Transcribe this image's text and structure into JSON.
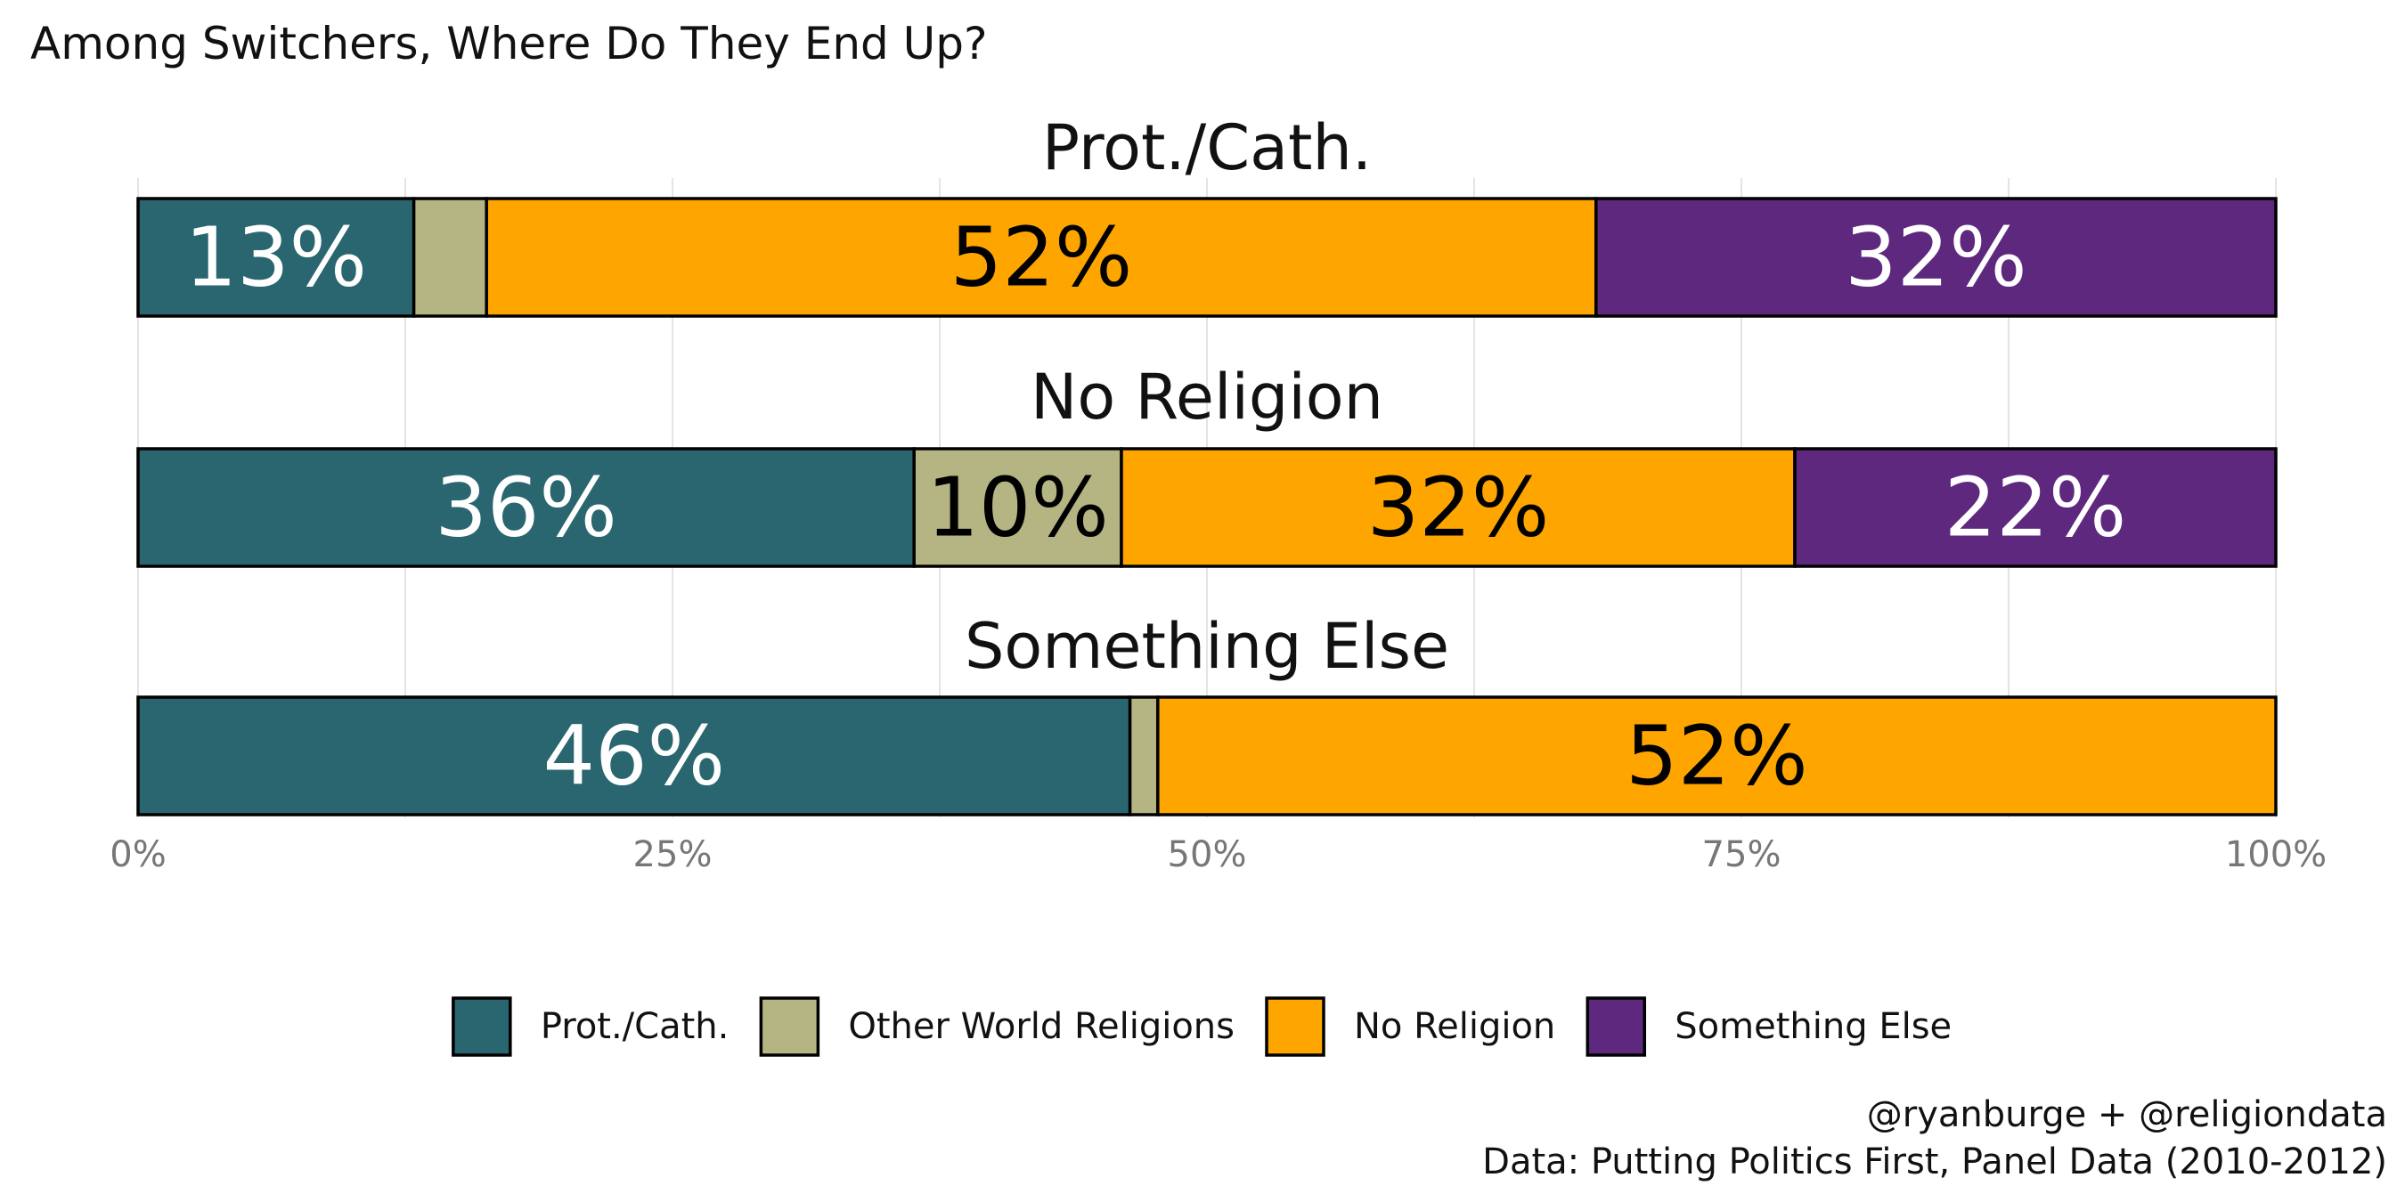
{
  "chart_data": {
    "type": "bar",
    "orientation": "horizontal",
    "stacked": true,
    "title": "Among Switchers, Where Do They End Up?",
    "xlim": [
      0,
      100
    ],
    "x_ticks": [
      "0%",
      "25%",
      "50%",
      "75%",
      "100%"
    ],
    "x_tick_values": [
      0,
      25,
      50,
      75,
      100
    ],
    "grid": true,
    "legend_position": "bottom",
    "categories": [
      "Prot./Cath.",
      "Other World Religions",
      "No Religion",
      "Something Else"
    ],
    "colors": {
      "Prot./Cath.": "#2a6670",
      "Other World Religions": "#b5b584",
      "No Religion": "#ffa500",
      "Something Else": "#5d287d"
    },
    "label_colors": {
      "Prot./Cath.": "#ffffff",
      "Other World Religions": "#000000",
      "No Religion": "#000000",
      "Something Else": "#ffffff"
    },
    "panels": [
      {
        "title": "Prot./Cath.",
        "values": [
          12.9,
          3.4,
          51.9,
          31.8
        ],
        "labels": [
          "13%",
          "",
          "52%",
          "32%"
        ]
      },
      {
        "title": "No Religion",
        "values": [
          36.3,
          9.7,
          31.5,
          22.5
        ],
        "labels": [
          "36%",
          "10%",
          "32%",
          "22%"
        ]
      },
      {
        "title": "Something Else",
        "values": [
          46.4,
          1.3,
          52.3,
          0
        ],
        "labels": [
          "46%",
          "",
          "52%",
          ""
        ]
      }
    ],
    "caption": [
      "@ryanburge + @religiondata",
      "Data: Putting Politics First, Panel Data (2010-2012)"
    ]
  }
}
